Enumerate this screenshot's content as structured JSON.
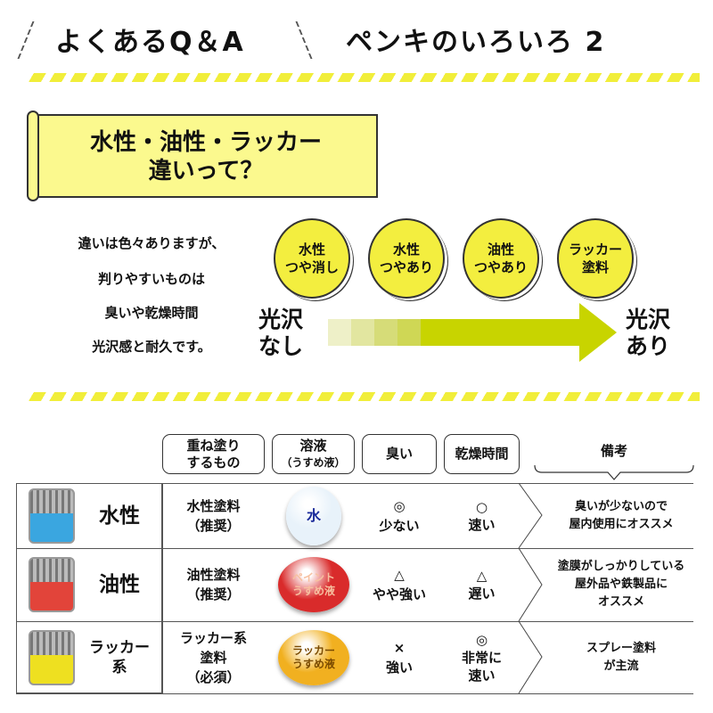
{
  "header": {
    "left_title": "よくあるQ＆A",
    "right_title": "ペンキのいろいろ 2"
  },
  "banner": {
    "line1": "水性・油性・ラッカー",
    "line2": "違いって？"
  },
  "intro": [
    "違いは色々ありますが、",
    "判りやすいものは",
    "臭いや乾燥時間",
    "光沢感と耐久です。"
  ],
  "gloss_scale": {
    "left_label": [
      "光沢",
      "なし"
    ],
    "right_label": [
      "光沢",
      "あり"
    ],
    "items": [
      {
        "line1": "水性",
        "line2": "つや消し"
      },
      {
        "line1": "水性",
        "line2": "つやあり"
      },
      {
        "line1": "油性",
        "line2": "つやあり"
      },
      {
        "line1": "ラッカー",
        "line2": "塗料"
      }
    ],
    "arrow_color": "#c8d400"
  },
  "table": {
    "headers": [
      {
        "line1": "重ね塗り",
        "line2": "するもの"
      },
      {
        "line1": "溶液",
        "line2": "（うすめ液）"
      },
      {
        "line1": "臭い",
        "line2": ""
      },
      {
        "line1": "乾燥時間",
        "line2": ""
      },
      {
        "line1": "備考",
        "line2": ""
      }
    ],
    "rows": [
      {
        "type": "水性",
        "type2": "",
        "liquid_color": "#3aa6e0",
        "overcoat": [
          "水性塗料",
          "（推奨）",
          ""
        ],
        "solvent": [
          "水",
          ""
        ],
        "solvent_color": "#e8f2fa",
        "solvent_text_color": "#1a2a9a",
        "smell": [
          "◎",
          "少ない"
        ],
        "dry": [
          "○",
          "速い",
          ""
        ],
        "note": [
          "臭いが少ないので",
          "屋内使用にオススメ",
          ""
        ]
      },
      {
        "type": "油性",
        "type2": "",
        "liquid_color": "#e2443a",
        "overcoat": [
          "油性塗料",
          "（推奨）",
          ""
        ],
        "solvent": [
          "ペイント",
          "うすめ液"
        ],
        "solvent_color": "#d92b2b",
        "solvent_text_color": "#f7c0a0",
        "smell": [
          "△",
          "やや強い"
        ],
        "dry": [
          "△",
          "遅い",
          ""
        ],
        "note": [
          "塗膜がしっかりしている",
          "屋外品や鉄製品に",
          "オススメ"
        ]
      },
      {
        "type": "ラッカー",
        "type2": "系",
        "liquid_color": "#eee020",
        "overcoat": [
          "ラッカー系",
          "塗料",
          "（必須）"
        ],
        "solvent": [
          "ラッカー",
          "うすめ液"
        ],
        "solvent_color": "#f1b020",
        "solvent_text_color": "#7a4a00",
        "smell": [
          "×",
          "強い"
        ],
        "dry": [
          "◎",
          "非常に",
          "速い"
        ],
        "note": [
          "スプレー塗料",
          "が主流",
          ""
        ]
      }
    ]
  }
}
